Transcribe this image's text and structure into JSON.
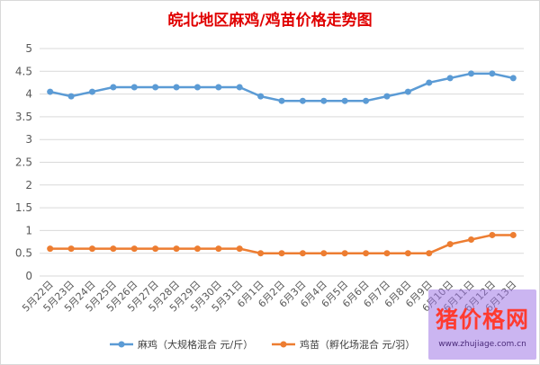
{
  "chart_data": {
    "type": "line",
    "title": "皖北地区麻鸡/鸡苗价格走势图",
    "categories": [
      "5月22日",
      "5月23日",
      "5月24日",
      "5月25日",
      "5月26日",
      "5月27日",
      "5月28日",
      "5月29日",
      "5月30日",
      "5月31日",
      "6月1日",
      "6月2日",
      "6月3日",
      "6月4日",
      "6月5日",
      "6月6日",
      "6月7日",
      "6月8日",
      "6月9日",
      "6月10日",
      "6月11日",
      "6月12日",
      "6月13日"
    ],
    "series": [
      {
        "name": "麻鸡（大规格混合 元/斤）",
        "color": "#5b9bd5",
        "values": [
          4.05,
          3.95,
          4.05,
          4.15,
          4.15,
          4.15,
          4.15,
          4.15,
          4.15,
          4.15,
          3.95,
          3.85,
          3.85,
          3.85,
          3.85,
          3.85,
          3.95,
          4.05,
          4.25,
          4.35,
          4.45,
          4.45,
          4.35
        ]
      },
      {
        "name": "鸡苗（孵化场混合 元/羽）",
        "color": "#ed7d31",
        "values": [
          0.6,
          0.6,
          0.6,
          0.6,
          0.6,
          0.6,
          0.6,
          0.6,
          0.6,
          0.6,
          0.5,
          0.5,
          0.5,
          0.5,
          0.5,
          0.5,
          0.5,
          0.5,
          0.5,
          0.7,
          0.8,
          0.9,
          0.9
        ]
      }
    ],
    "ylim": [
      0,
      5
    ],
    "yticks": [
      0,
      0.5,
      1,
      1.5,
      2,
      2.5,
      3,
      3.5,
      4,
      4.5,
      5
    ],
    "grid": true,
    "legend": "bottom"
  },
  "watermark": {
    "brand": "猪价格网",
    "url": "www.zhujiage.com.cn"
  }
}
